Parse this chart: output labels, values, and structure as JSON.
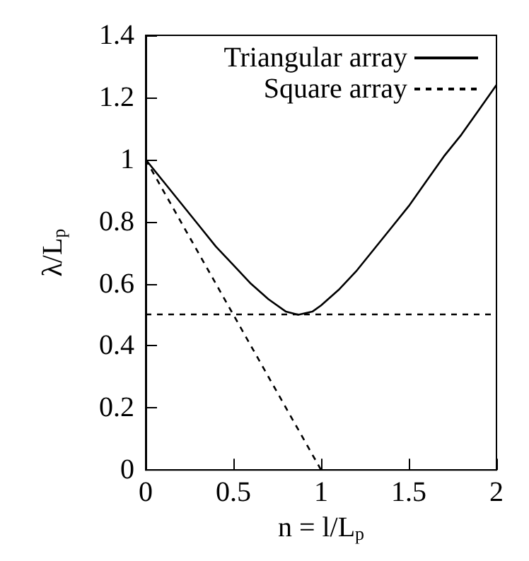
{
  "chart_data": {
    "type": "line",
    "xlabel": "n = l/L$_{p}$",
    "ylabel": "λ/L$_{p}$",
    "xlim": [
      0,
      2
    ],
    "xticks": [
      0,
      0.5,
      1,
      1.5,
      2
    ],
    "ylim": [
      0,
      1.4
    ],
    "yticks": [
      0,
      0.2,
      0.4,
      0.6,
      0.8,
      1,
      1.2,
      1.4
    ],
    "grid": false,
    "legend": "top right",
    "marker": "none",
    "ref_lines": [
      {
        "axis": "y",
        "value": 0.5,
        "color": "#000000",
        "line_style": "dashed"
      }
    ],
    "series": [
      {
        "name": "Triangular array",
        "color": "#000000",
        "line_style": "solid",
        "x": [
          0,
          0.1,
          0.2,
          0.3,
          0.4,
          0.5,
          0.6,
          0.7,
          0.8,
          0.87,
          0.95,
          1,
          1.1,
          1.2,
          1.3,
          1.4,
          1.5,
          1.6,
          1.7,
          1.8,
          1.9,
          2
        ],
        "values": [
          1,
          0.93,
          0.86,
          0.79,
          0.72,
          0.66,
          0.6,
          0.55,
          0.51,
          0.5,
          0.51,
          0.53,
          0.58,
          0.64,
          0.71,
          0.78,
          0.85,
          0.93,
          1.01,
          1.08,
          1.16,
          1.24
        ]
      },
      {
        "name": "Square array",
        "color": "#000000",
        "line_style": "dashed",
        "x": [
          0,
          1
        ],
        "values": [
          1,
          0
        ]
      }
    ]
  }
}
